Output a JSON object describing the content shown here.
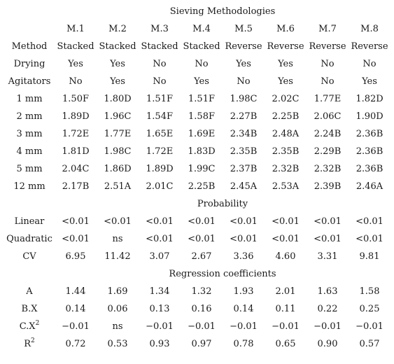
{
  "title": "Sieving Methodologies",
  "methods": [
    "M.1",
    "M.2",
    "M.3",
    "M.4",
    "M.5",
    "M.6",
    "M.7",
    "M.8"
  ],
  "attributes": [
    {
      "label": "Method",
      "values": [
        "Stacked",
        "Stacked",
        "Stacked",
        "Stacked",
        "Reverse",
        "Reverse",
        "Reverse",
        "Reverse"
      ]
    },
    {
      "label": "Drying",
      "values": [
        "Yes",
        "Yes",
        "No",
        "No",
        "Yes",
        "Yes",
        "No",
        "No"
      ]
    },
    {
      "label": "Agitators",
      "values": [
        "No",
        "Yes",
        "No",
        "Yes",
        "No",
        "Yes",
        "No",
        "Yes"
      ]
    }
  ],
  "sizes": [
    {
      "label": "1 mm",
      "values": [
        "1.50F",
        "1.80D",
        "1.51F",
        "1.51F",
        "1.98C",
        "2.02C",
        "1.77E",
        "1.82D"
      ]
    },
    {
      "label": "2 mm",
      "values": [
        "1.89D",
        "1.96C",
        "1.54F",
        "1.58F",
        "2.27B",
        "2.25B",
        "2.06C",
        "1.90D"
      ]
    },
    {
      "label": "3 mm",
      "values": [
        "1.72E",
        "1.77E",
        "1.65E",
        "1.69E",
        "2.34B",
        "2.48A",
        "2.24B",
        "2.36B"
      ]
    },
    {
      "label": "4 mm",
      "values": [
        "1.81D",
        "1.98C",
        "1.72E",
        "1.83D",
        "2.35B",
        "2.35B",
        "2.29B",
        "2.36B"
      ]
    },
    {
      "label": "5 mm",
      "values": [
        "2.04C",
        "1.86D",
        "1.89D",
        "1.99C",
        "2.37B",
        "2.32B",
        "2.32B",
        "2.36B"
      ]
    },
    {
      "label": "12 mm",
      "values": [
        "2.17B",
        "2.51A",
        "2.01C",
        "2.25B",
        "2.45A",
        "2.53A",
        "2.39B",
        "2.46A"
      ]
    }
  ],
  "probability": {
    "title": "Probability",
    "rows": [
      {
        "label": "Linear",
        "values": [
          "<0.01",
          "<0.01",
          "<0.01",
          "<0.01",
          "<0.01",
          "<0.01",
          "<0.01",
          "<0.01"
        ]
      },
      {
        "label": "Quadratic",
        "values": [
          "<0.01",
          "ns",
          "<0.01",
          "<0.01",
          "<0.01",
          "<0.01",
          "<0.01",
          "<0.01"
        ]
      },
      {
        "label": "CV",
        "values": [
          "6.95",
          "11.42",
          "3.07",
          "2.67",
          "3.36",
          "4.60",
          "3.31",
          "9.81"
        ]
      }
    ]
  },
  "regression": {
    "title": "Regression coefficients",
    "rows": [
      {
        "label": "A",
        "sup": "",
        "values": [
          "1.44",
          "1.69",
          "1.34",
          "1.32",
          "1.93",
          "2.01",
          "1.63",
          "1.58"
        ]
      },
      {
        "label": "B.X",
        "sup": "",
        "values": [
          "0.14",
          "0.06",
          "0.13",
          "0.16",
          "0.14",
          "0.11",
          "0.22",
          "0.25"
        ]
      },
      {
        "label": "C.X",
        "sup": "2",
        "values": [
          "−0.01",
          "ns",
          "−0.01",
          "−0.01",
          "−0.01",
          "−0.01",
          "−0.01",
          "−0.01"
        ]
      },
      {
        "label": "R",
        "sup": "2",
        "values": [
          "0.72",
          "0.53",
          "0.93",
          "0.97",
          "0.78",
          "0.65",
          "0.90",
          "0.57"
        ]
      }
    ]
  }
}
